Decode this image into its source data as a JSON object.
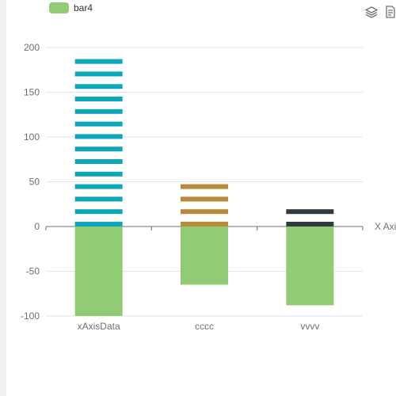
{
  "legend": {
    "label": "bar4",
    "color": "#91cc75"
  },
  "toolbox": {
    "icons": [
      "stack-icon",
      "data-view-icon"
    ]
  },
  "chart_data": {
    "type": "bar",
    "categories": [
      "xAxisData",
      "cccc",
      "vvvv"
    ],
    "xlabel": "X Axis",
    "ylabel": "",
    "ylim": [
      -100,
      200
    ],
    "yticks": [
      -100,
      -50,
      0,
      50,
      100,
      150,
      200
    ],
    "grid": true,
    "legend_position": "top-left",
    "series": [
      {
        "name": "bar4",
        "color": "#91cc75",
        "fill": "solid",
        "values": [
          -100,
          -65,
          -88
        ]
      },
      {
        "color": "#0ca7b8",
        "fill": "striped",
        "values": [
          200,
          0,
          0
        ]
      },
      {
        "color": "#b8893b",
        "fill": "striped",
        "values": [
          0,
          60,
          0
        ]
      },
      {
        "color": "#2e3b40",
        "fill": "striped",
        "values": [
          0,
          0,
          32
        ]
      }
    ]
  }
}
